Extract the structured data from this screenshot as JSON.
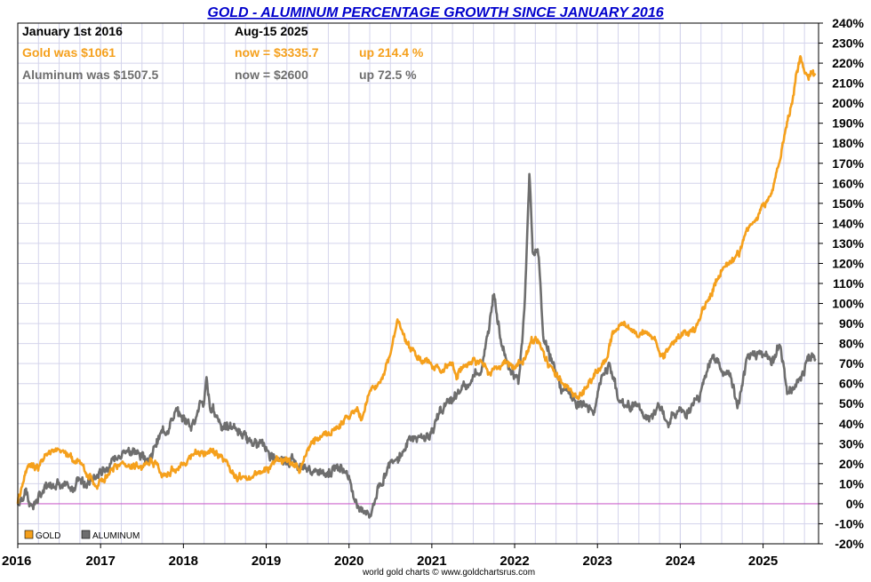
{
  "chart_data": {
    "type": "line",
    "title": "GOLD - ALUMINUM PERCENTAGE GROWTH SINCE JANUARY 2016",
    "credit": "world gold charts © www.goldchartsrus.com",
    "header": {
      "start_label": "January 1st 2016",
      "end_label": "Aug-15  2025",
      "gold": {
        "was": "Gold was $1061",
        "now": "now = $3335.7",
        "change": "up 214.4 %"
      },
      "aluminum": {
        "was": "Aluminum was $1507.5",
        "now": "now = $2600",
        "change": "up 72.5 %"
      }
    },
    "x_range": [
      2016.0,
      2025.67
    ],
    "ylim": [
      -20,
      240
    ],
    "y_ticks": [
      240,
      230,
      220,
      210,
      200,
      190,
      180,
      170,
      160,
      150,
      140,
      130,
      120,
      110,
      100,
      90,
      80,
      70,
      60,
      50,
      40,
      30,
      20,
      10,
      0,
      -10,
      -20
    ],
    "y_tick_labels": [
      "240%",
      "230%",
      "220%",
      "210%",
      "200%",
      "190%",
      "180%",
      "170%",
      "160%",
      "150%",
      "140%",
      "130%",
      "120%",
      "110%",
      "100%",
      "90%",
      "80%",
      "70%",
      "60%",
      "50%",
      "40%",
      "30%",
      "20%",
      "10%",
      "0%",
      "-10%",
      "-20%"
    ],
    "x_ticks": [
      2016,
      2017,
      2018,
      2019,
      2020,
      2021,
      2022,
      2023,
      2024,
      2025
    ],
    "x_tick_labels": [
      "2016",
      "2017",
      "2018",
      "2019",
      "2020",
      "2021",
      "2022",
      "2023",
      "2024",
      "2025"
    ],
    "legend": {
      "position": "bottom-left",
      "entries": [
        "GOLD",
        "ALUMINUM"
      ]
    },
    "colors": {
      "gold": "#f5a01c",
      "aluminum": "#6e6e6e",
      "zero_line": "#cc66cc",
      "title": "#0000cc",
      "grid": "#d4d4ec",
      "axis": "#000000"
    },
    "series": [
      {
        "name": "GOLD",
        "x": [
          2016.0,
          2016.05,
          2016.1,
          2016.15,
          2016.25,
          2016.35,
          2016.45,
          2016.55,
          2016.65,
          2016.75,
          2016.85,
          2016.95,
          2017.05,
          2017.2,
          2017.35,
          2017.5,
          2017.6,
          2017.75,
          2017.9,
          2018.05,
          2018.15,
          2018.3,
          2018.45,
          2018.55,
          2018.65,
          2018.8,
          2018.95,
          2019.1,
          2019.25,
          2019.4,
          2019.5,
          2019.6,
          2019.7,
          2019.85,
          2020.0,
          2020.1,
          2020.15,
          2020.22,
          2020.3,
          2020.4,
          2020.5,
          2020.58,
          2020.65,
          2020.75,
          2020.85,
          2021.0,
          2021.1,
          2021.2,
          2021.3,
          2021.4,
          2021.5,
          2021.6,
          2021.7,
          2021.8,
          2021.9,
          2022.0,
          2022.1,
          2022.2,
          2022.3,
          2022.4,
          2022.5,
          2022.6,
          2022.7,
          2022.8,
          2022.9,
          2023.0,
          2023.1,
          2023.2,
          2023.3,
          2023.4,
          2023.5,
          2023.6,
          2023.7,
          2023.8,
          2023.9,
          2024.0,
          2024.1,
          2024.2,
          2024.3,
          2024.4,
          2024.5,
          2024.6,
          2024.7,
          2024.8,
          2024.9,
          2025.0,
          2025.1,
          2025.2,
          2025.25,
          2025.3,
          2025.35,
          2025.4,
          2025.45,
          2025.5,
          2025.55,
          2025.6,
          2025.63
        ],
        "values": [
          0,
          8,
          16,
          20,
          18,
          25,
          28,
          26,
          22,
          20,
          14,
          8,
          12,
          19,
          20,
          18,
          22,
          15,
          17,
          21,
          25,
          26,
          24,
          20,
          13,
          12,
          16,
          21,
          22,
          17,
          28,
          32,
          34,
          38,
          44,
          48,
          42,
          53,
          58,
          63,
          76,
          92,
          84,
          76,
          73,
          70,
          66,
          70,
          64,
          70,
          72,
          70,
          66,
          69,
          72,
          67,
          72,
          82,
          80,
          70,
          64,
          60,
          55,
          54,
          60,
          66,
          72,
          87,
          90,
          88,
          84,
          86,
          81,
          73,
          81,
          84,
          84,
          89,
          99,
          107,
          117,
          122,
          124,
          137,
          142,
          147,
          155,
          172,
          183,
          192,
          200,
          214,
          222,
          215,
          212,
          216,
          214
        ]
      },
      {
        "name": "ALUMINUM",
        "x": [
          2016.0,
          2016.05,
          2016.1,
          2016.15,
          2016.25,
          2016.35,
          2016.45,
          2016.55,
          2016.65,
          2016.75,
          2016.85,
          2016.95,
          2017.05,
          2017.2,
          2017.35,
          2017.5,
          2017.6,
          2017.7,
          2017.8,
          2017.9,
          2018.0,
          2018.1,
          2018.2,
          2018.25,
          2018.28,
          2018.32,
          2018.4,
          2018.5,
          2018.6,
          2018.75,
          2018.9,
          2019.0,
          2019.1,
          2019.25,
          2019.4,
          2019.5,
          2019.6,
          2019.75,
          2019.9,
          2020.0,
          2020.1,
          2020.17,
          2020.25,
          2020.3,
          2020.35,
          2020.45,
          2020.55,
          2020.65,
          2020.75,
          2020.85,
          2020.95,
          2021.05,
          2021.15,
          2021.3,
          2021.4,
          2021.5,
          2021.6,
          2021.68,
          2021.75,
          2021.85,
          2021.95,
          2022.05,
          2022.12,
          2022.18,
          2022.22,
          2022.28,
          2022.35,
          2022.45,
          2022.55,
          2022.65,
          2022.75,
          2022.85,
          2022.95,
          2023.05,
          2023.15,
          2023.25,
          2023.35,
          2023.45,
          2023.55,
          2023.65,
          2023.75,
          2023.85,
          2023.95,
          2024.05,
          2024.15,
          2024.25,
          2024.35,
          2024.4,
          2024.5,
          2024.6,
          2024.7,
          2024.8,
          2024.9,
          2025.0,
          2025.1,
          2025.15,
          2025.2,
          2025.25,
          2025.3,
          2025.4,
          2025.5,
          2025.55,
          2025.6,
          2025.63
        ],
        "values": [
          0,
          2,
          8,
          -2,
          3,
          8,
          12,
          8,
          6,
          14,
          10,
          13,
          18,
          24,
          27,
          24,
          23,
          33,
          38,
          45,
          43,
          40,
          48,
          50,
          64,
          48,
          45,
          37,
          39,
          32,
          30,
          28,
          22,
          23,
          20,
          17,
          15,
          16,
          20,
          13,
          0,
          -4,
          -5,
          0,
          8,
          16,
          24,
          26,
          33,
          33,
          34,
          40,
          48,
          55,
          58,
          64,
          68,
          84,
          106,
          78,
          68,
          62,
          98,
          165,
          124,
          128,
          82,
          72,
          58,
          55,
          48,
          50,
          44,
          63,
          70,
          52,
          48,
          50,
          44,
          42,
          48,
          41,
          46,
          46,
          48,
          55,
          72,
          76,
          66,
          63,
          48,
          70,
          76,
          74,
          72,
          74,
          80,
          70,
          54,
          60,
          68,
          75,
          73,
          72.5
        ]
      }
    ]
  }
}
